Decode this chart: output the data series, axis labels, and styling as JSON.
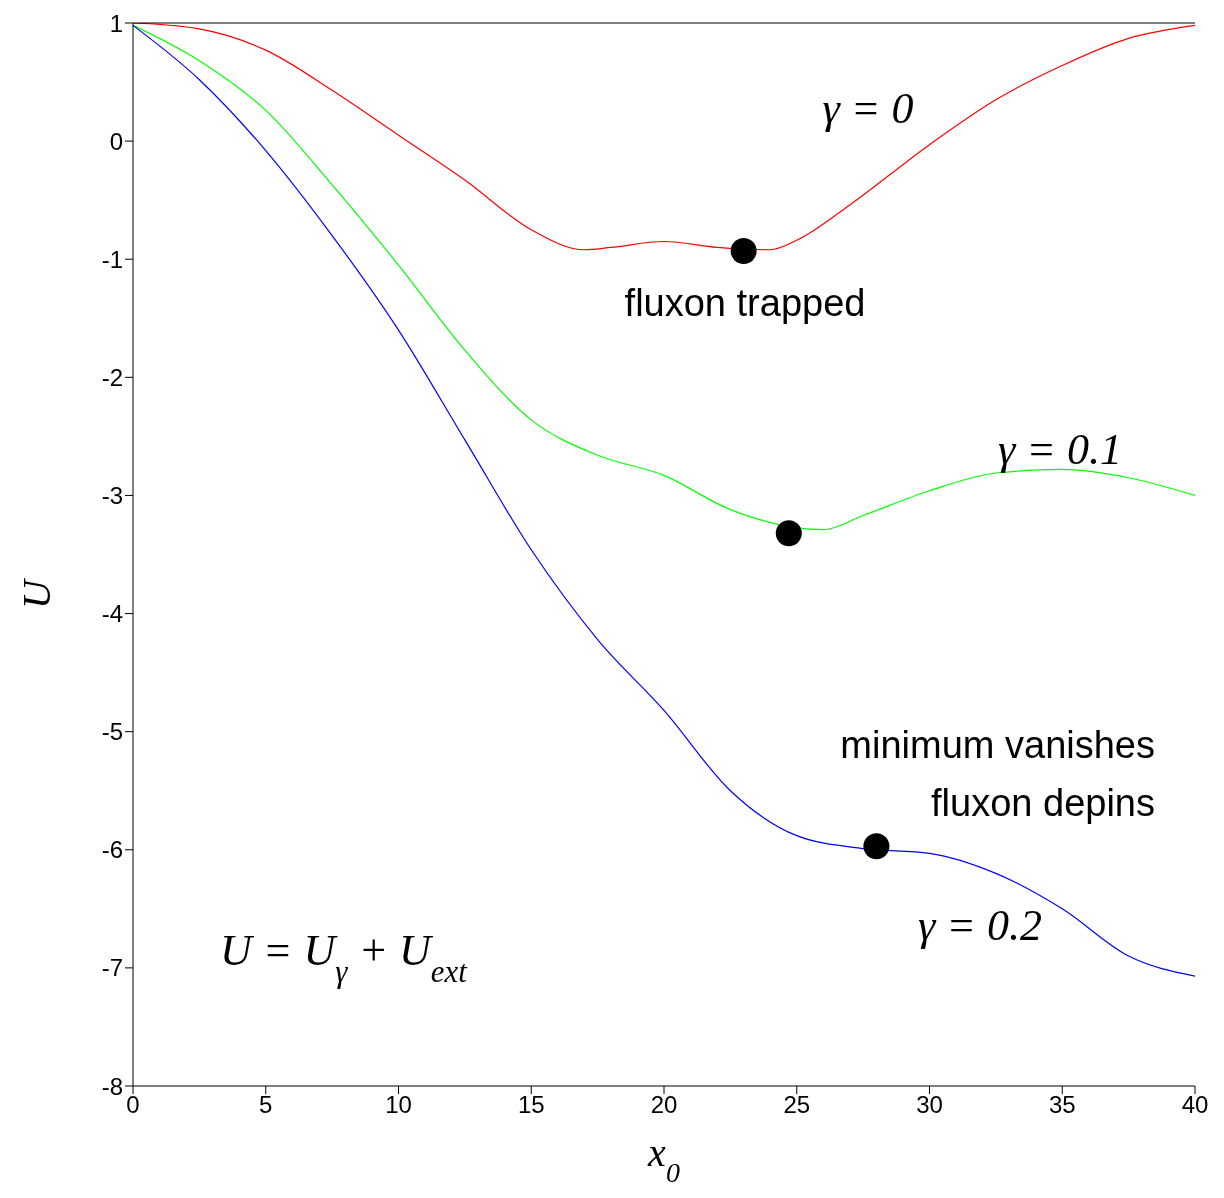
{
  "chart_data": {
    "type": "line",
    "xlabel": "x$_{0}$",
    "ylabel": "U",
    "xlim": [
      0,
      40
    ],
    "xticks": [
      0,
      5,
      10,
      15,
      20,
      25,
      30,
      35,
      40
    ],
    "ylim": [
      -8,
      1
    ],
    "yticks": [
      -8,
      -7,
      -6,
      -5,
      -4,
      -3,
      -2,
      -1,
      0,
      1
    ],
    "grid": false,
    "marker": "none",
    "series": [
      {
        "color": "#ff0000",
        "x": [
          0,
          2.5,
          5,
          7.5,
          10,
          12.5,
          15,
          17,
          18,
          20,
          22,
          24,
          25,
          27,
          30,
          32.5,
          35,
          37.5,
          40
        ],
        "values": [
          1.0,
          0.95,
          0.77,
          0.43,
          0.05,
          -0.33,
          -0.75,
          -0.92,
          -0.9,
          -0.85,
          -0.9,
          -0.92,
          -0.84,
          -0.54,
          -0.03,
          0.35,
          0.64,
          0.87,
          0.98
        ]
      },
      {
        "color": "#00ff00",
        "x": [
          0,
          2.5,
          5,
          7.5,
          10,
          12.5,
          15,
          17.5,
          20,
          22.5,
          26,
          27.5,
          30,
          32.5,
          35,
          37.5,
          40
        ],
        "values": [
          0.98,
          0.68,
          0.26,
          -0.37,
          -1.05,
          -1.77,
          -2.36,
          -2.66,
          -2.83,
          -3.12,
          -3.29,
          -3.17,
          -2.96,
          -2.81,
          -2.78,
          -2.85,
          -3.0
        ]
      },
      {
        "color": "#0000ff",
        "x": [
          0,
          2.5,
          5,
          7.5,
          10,
          12.5,
          15,
          17.5,
          20,
          22.5,
          25,
          27.5,
          30,
          32.5,
          35,
          37.5,
          40
        ],
        "values": [
          0.98,
          0.52,
          -0.08,
          -0.8,
          -1.6,
          -2.53,
          -3.46,
          -4.22,
          -4.82,
          -5.5,
          -5.88,
          -5.99,
          -6.03,
          -6.2,
          -6.5,
          -6.9,
          -7.07
        ]
      },
      {
        "type": "scatter",
        "marker": "circle",
        "color": "#000000",
        "x": [
          23,
          24.7,
          28
        ],
        "values": [
          -0.93,
          -3.32,
          -5.97
        ]
      }
    ],
    "annotations": [
      "γ = 0",
      "γ = 0.1",
      "γ = 0.2",
      "fluxon trapped",
      "minimum vanishes",
      "fluxon depins",
      "U = U$_{γ}$ + U$_{ext}$"
    ]
  }
}
